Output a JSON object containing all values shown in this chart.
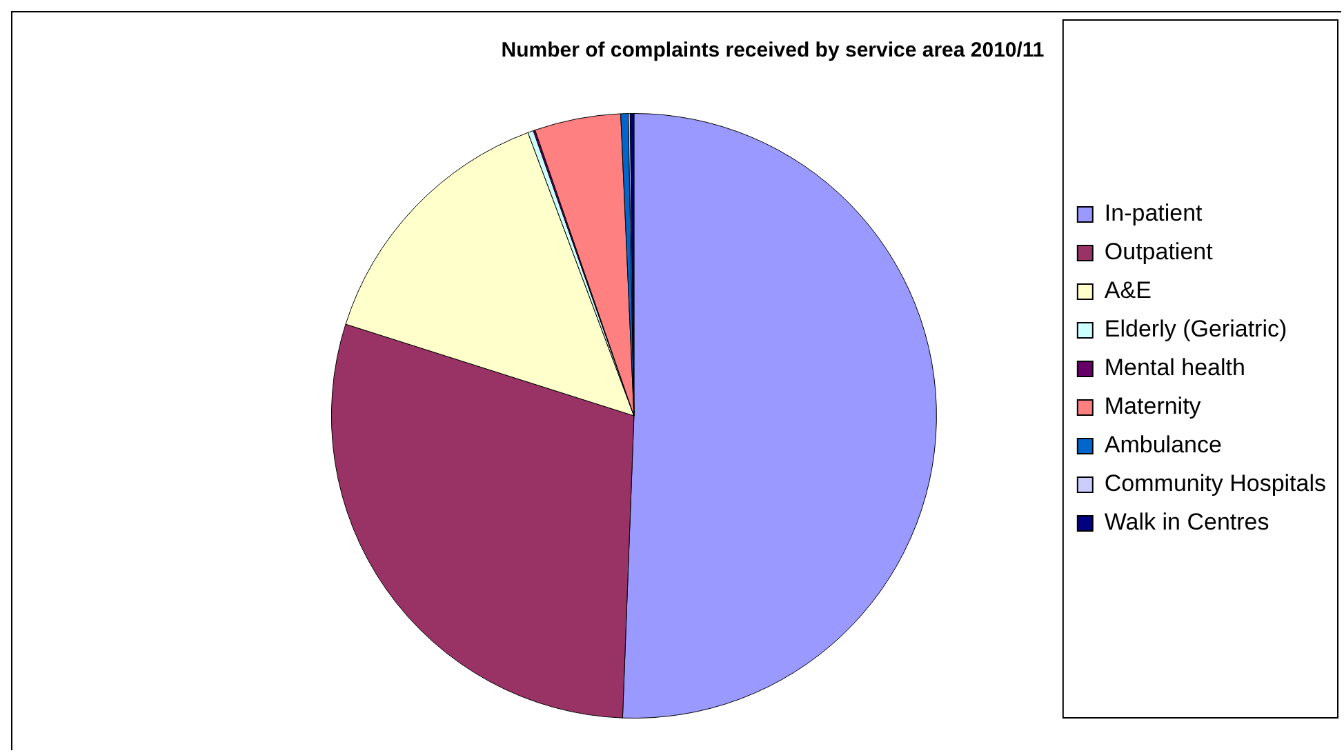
{
  "chart_data": {
    "type": "pie",
    "title": "Number of complaints received by service area 2010/11",
    "categories": [
      "In-patient",
      "Outpatient",
      "A&E",
      "Elderly (Geriatric)",
      "Mental health",
      "Maternity",
      "Ambulance",
      "Community Hospitals",
      "Walk in Centres"
    ],
    "values": [
      50.6,
      29.3,
      14.4,
      0.3,
      0.1,
      4.6,
      0.4,
      0.1,
      0.2
    ],
    "colors": [
      "#9999ff",
      "#993366",
      "#ffffcc",
      "#ccffff",
      "#660066",
      "#ff8080",
      "#0066cc",
      "#ccccff",
      "#000080"
    ],
    "legend": "right"
  }
}
